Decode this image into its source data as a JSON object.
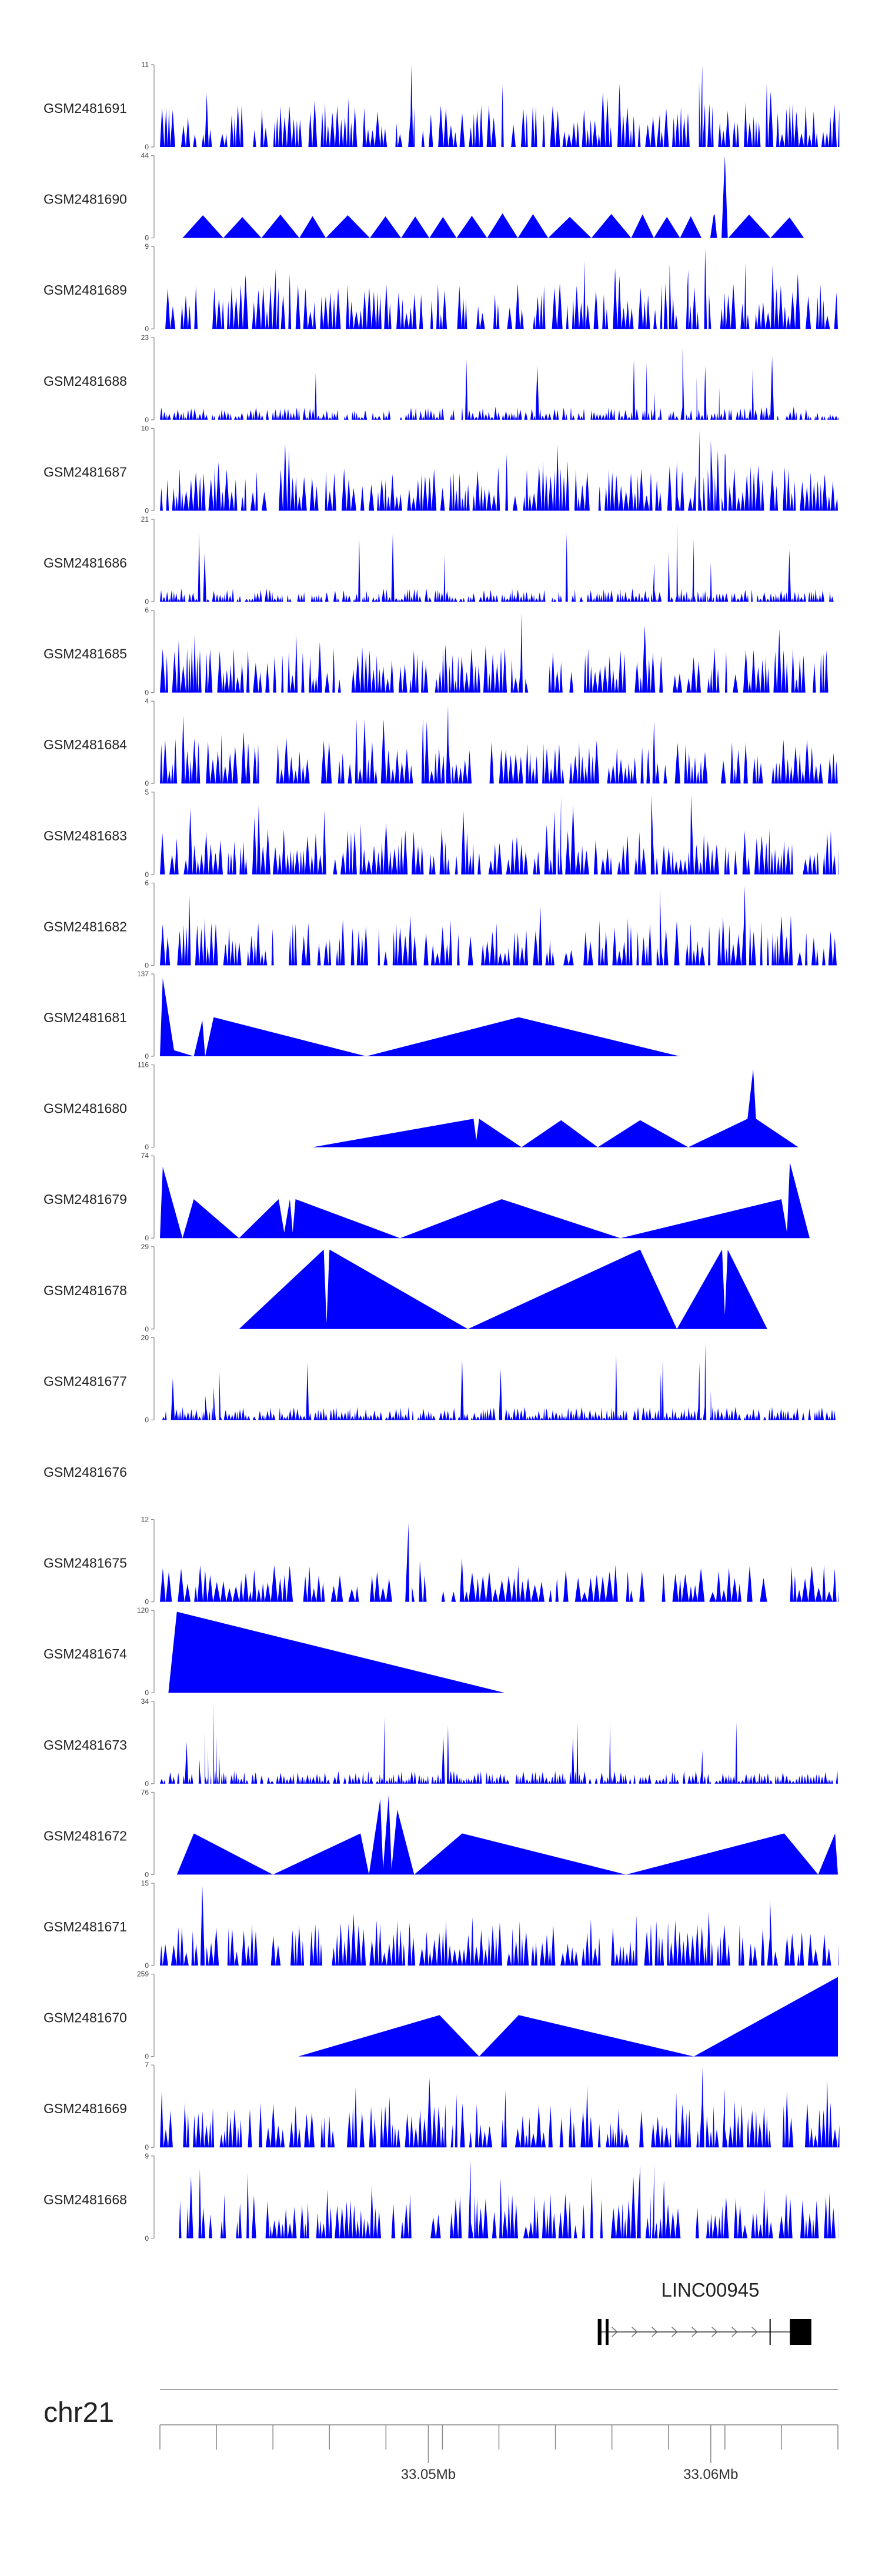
{
  "chart_data": {
    "type": "area",
    "title": "",
    "chromosome": "chr21",
    "x_range_mb": [
      33.0405,
      33.0645
    ],
    "fill_color": "#0000FF",
    "axis_color": "#888888",
    "tracks": [
      {
        "name": "GSM2481691",
        "ymax": 11,
        "ymin": 0,
        "pattern": "dense",
        "seed": 11,
        "peaks": [
          [
            33.0494,
            11
          ],
          [
            33.0582,
            4.5
          ],
          [
            33.0597,
            11
          ]
        ]
      },
      {
        "name": "GSM2481690",
        "ymax": 44,
        "ymin": 0,
        "pattern": "sparse",
        "seed": 21,
        "domain": [
          33.0413,
          33.0633
        ],
        "peaks": [
          [
            33.0605,
            44
          ],
          [
            33.0601,
            12
          ]
        ]
      },
      {
        "name": "GSM2481689",
        "ymax": 9,
        "ymin": 0,
        "pattern": "dense",
        "seed": 33,
        "peaks": [
          [
            33.0446,
            6.5
          ],
          [
            33.0584,
            5
          ],
          [
            33.0592,
            6.5
          ],
          [
            33.0598,
            8.8
          ]
        ]
      },
      {
        "name": "GSM2481688",
        "ymax": 23,
        "ymin": 0,
        "pattern": "lowdense",
        "seed": 42,
        "peaks": [
          [
            33.058,
            8
          ],
          [
            33.059,
            20
          ],
          [
            33.0595,
            12
          ],
          [
            33.0603,
            9
          ]
        ]
      },
      {
        "name": "GSM2481687",
        "ymax": 10,
        "ymin": 0,
        "pattern": "dense",
        "seed": 51,
        "peaks": [
          [
            33.0588,
            6
          ],
          [
            33.0596,
            9.8
          ],
          [
            33.06,
            8.5
          ],
          [
            33.0605,
            7
          ]
        ]
      },
      {
        "name": "GSM2481686",
        "ymax": 21,
        "ymin": 0,
        "pattern": "lowdense",
        "seed": 63,
        "peaks": [
          [
            33.058,
            10
          ],
          [
            33.0588,
            20
          ],
          [
            33.0594,
            16
          ],
          [
            33.06,
            10
          ]
        ]
      },
      {
        "name": "GSM2481685",
        "ymax": 6,
        "ymin": 0,
        "pattern": "dense",
        "seed": 72,
        "peaks": [
          [
            33.0533,
            5.8
          ],
          [
            33.0506,
            3.5
          ]
        ]
      },
      {
        "name": "GSM2481684",
        "ymax": 4,
        "ymin": 0,
        "pattern": "dense",
        "seed": 84,
        "peaks": [
          [
            33.0507,
            3.8
          ]
        ]
      },
      {
        "name": "GSM2481683",
        "ymax": 5,
        "ymin": 0,
        "pattern": "dense",
        "seed": 95,
        "peaks": [
          [
            33.0547,
            4.8
          ],
          [
            33.0579,
            4.8
          ],
          [
            33.0593,
            4.8
          ]
        ]
      },
      {
        "name": "GSM2481682",
        "ymax": 6,
        "ymin": 0,
        "pattern": "dense",
        "seed": 107,
        "peaks": [
          [
            33.0582,
            5.6
          ],
          [
            33.0612,
            5.8
          ]
        ]
      },
      {
        "name": "GSM2481681",
        "ymax": 137,
        "ymin": 0,
        "pattern": "explicit",
        "points": [
          [
            33.0405,
            0
          ],
          [
            33.0406,
            130
          ],
          [
            33.041,
            10
          ],
          [
            33.0417,
            0
          ],
          [
            33.042,
            60
          ],
          [
            33.0421,
            0
          ],
          [
            33.0424,
            65
          ],
          [
            33.0478,
            0
          ],
          [
            33.0532,
            65
          ],
          [
            33.0589,
            0
          ]
        ]
      },
      {
        "name": "GSM2481680",
        "ymax": 116,
        "ymin": 0,
        "pattern": "explicit",
        "points": [
          [
            33.0459,
            0
          ],
          [
            33.0516,
            40
          ],
          [
            33.0517,
            10
          ],
          [
            33.0518,
            40
          ],
          [
            33.0533,
            0
          ],
          [
            33.0547,
            38
          ],
          [
            33.056,
            0
          ],
          [
            33.0575,
            38
          ],
          [
            33.0592,
            0
          ],
          [
            33.0613,
            40
          ],
          [
            33.0615,
            110
          ],
          [
            33.0616,
            40
          ],
          [
            33.0631,
            0
          ]
        ]
      },
      {
        "name": "GSM2481679",
        "ymax": 74,
        "ymin": 0,
        "pattern": "explicit",
        "points": [
          [
            33.0405,
            0
          ],
          [
            33.0406,
            64
          ],
          [
            33.0413,
            0
          ],
          [
            33.0417,
            35
          ],
          [
            33.0433,
            0
          ],
          [
            33.0447,
            35
          ],
          [
            33.0449,
            5
          ],
          [
            33.0451,
            35
          ],
          [
            33.0452,
            5
          ],
          [
            33.0453,
            35
          ],
          [
            33.049,
            0
          ],
          [
            33.0526,
            35
          ],
          [
            33.0568,
            0
          ],
          [
            33.0625,
            35
          ],
          [
            33.0627,
            5
          ],
          [
            33.0628,
            68
          ],
          [
            33.0635,
            0
          ]
        ]
      },
      {
        "name": "GSM2481678",
        "ymax": 29,
        "ymin": 0,
        "pattern": "explicit",
        "points": [
          [
            33.0433,
            0
          ],
          [
            33.0463,
            28
          ],
          [
            33.0464,
            2
          ],
          [
            33.0465,
            28
          ],
          [
            33.0514,
            0
          ],
          [
            33.0575,
            28
          ],
          [
            33.0588,
            0
          ],
          [
            33.0604,
            28
          ],
          [
            33.0605,
            5
          ],
          [
            33.0606,
            28
          ],
          [
            33.062,
            0
          ]
        ]
      },
      {
        "name": "GSM2481677",
        "ymax": 20,
        "ymin": 0,
        "pattern": "lowdense",
        "seed": 131,
        "peaks": [
          [
            33.0421,
            6
          ],
          [
            33.0424,
            8
          ],
          [
            33.0426,
            12
          ],
          [
            33.0596,
            14
          ],
          [
            33.0598,
            19
          ],
          [
            33.06,
            7
          ]
        ]
      },
      {
        "name": "GSM2481676",
        "ymax": null,
        "ymin": null,
        "pattern": "empty"
      },
      {
        "name": "GSM2481675",
        "ymax": 12,
        "ymin": 0,
        "pattern": "medium",
        "seed": 151,
        "peaks": [
          [
            33.0493,
            11.5
          ],
          [
            33.0497,
            6
          ]
        ]
      },
      {
        "name": "GSM2481674",
        "ymax": 120,
        "ymin": 0,
        "pattern": "explicit",
        "points": [
          [
            33.0408,
            0
          ],
          [
            33.0411,
            118
          ],
          [
            33.0527,
            0
          ]
        ]
      },
      {
        "name": "GSM2481673",
        "ymax": 34,
        "ymin": 0,
        "pattern": "lowdense",
        "seed": 171,
        "peaks": [
          [
            33.0419,
            10
          ],
          [
            33.0421,
            22
          ],
          [
            33.0422,
            15
          ],
          [
            33.0424,
            33
          ],
          [
            33.0425,
            20
          ],
          [
            33.0426,
            12
          ],
          [
            33.0597,
            14
          ]
        ]
      },
      {
        "name": "GSM2481672",
        "ymax": 76,
        "ymin": 0,
        "pattern": "explicit",
        "points": [
          [
            33.0411,
            0
          ],
          [
            33.0417,
            38
          ],
          [
            33.0445,
            0
          ],
          [
            33.0476,
            38
          ],
          [
            33.0479,
            0
          ],
          [
            33.0483,
            70
          ],
          [
            33.0484,
            5
          ],
          [
            33.0486,
            74
          ],
          [
            33.0487,
            5
          ],
          [
            33.0489,
            60
          ],
          [
            33.0495,
            0
          ],
          [
            33.0512,
            38
          ],
          [
            33.057,
            0
          ],
          [
            33.0626,
            38
          ],
          [
            33.0638,
            0
          ],
          [
            33.0644,
            38
          ],
          [
            33.0645,
            0
          ]
        ]
      },
      {
        "name": "GSM2481671",
        "ymax": 15,
        "ymin": 0,
        "pattern": "dense",
        "seed": 191,
        "peaks": [
          [
            33.042,
            14.5
          ],
          [
            33.0621,
            12
          ]
        ]
      },
      {
        "name": "GSM2481670",
        "ymax": 259,
        "ymin": 0,
        "pattern": "explicit",
        "points": [
          [
            33.0454,
            0
          ],
          [
            33.0504,
            130
          ],
          [
            33.0518,
            0
          ],
          [
            33.0532,
            130
          ],
          [
            33.0594,
            0
          ],
          [
            33.0645,
            250
          ]
        ]
      },
      {
        "name": "GSM2481669",
        "ymax": 7,
        "ymin": 0,
        "pattern": "dense",
        "seed": 211,
        "peaks": [
          [
            33.0597,
            6.8
          ],
          [
            33.051,
            4.5
          ],
          [
            33.0605,
            5
          ]
        ]
      },
      {
        "name": "GSM2481668",
        "ymax": 9,
        "ymin": 0,
        "pattern": "dense",
        "seed": 223,
        "peaks": [
          [
            33.0515,
            8.5
          ],
          [
            33.0575,
            8
          ],
          [
            33.058,
            8.2
          ]
        ]
      }
    ],
    "gene": {
      "name": "LINC00945",
      "start_mb": 33.056,
      "end_mb": 33.0634,
      "strand": "+",
      "exons_mb": [
        [
          33.056,
          33.05613
        ],
        [
          33.05628,
          33.05638
        ],
        [
          33.0628,
          33.06356
        ]
      ]
    },
    "axis": {
      "label": "chr21",
      "ticks_mb": [
        33.0425,
        33.0445,
        33.0465,
        33.0485,
        33.0505,
        33.0525,
        33.0545,
        33.0565,
        33.0585,
        33.0605,
        33.0625,
        33.0645
      ],
      "major_ticks": [
        {
          "mb": 33.05,
          "label": "33.05Mb"
        },
        {
          "mb": 33.06,
          "label": "33.06Mb"
        }
      ]
    }
  }
}
